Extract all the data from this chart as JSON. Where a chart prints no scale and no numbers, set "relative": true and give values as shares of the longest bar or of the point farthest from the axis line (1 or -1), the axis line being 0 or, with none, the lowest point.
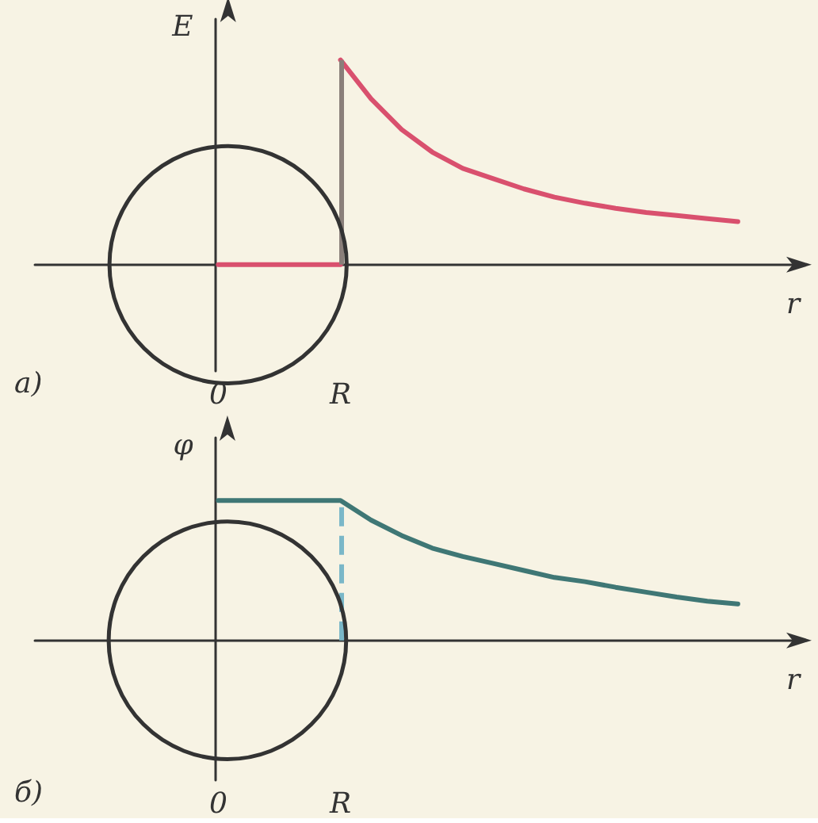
{
  "chart_data": [
    {
      "type": "line",
      "title": "а)",
      "xlabel": "r",
      "ylabel": "E",
      "relative": true,
      "grid": false,
      "marker": "none",
      "categories": [
        null,
        null,
        null,
        null,
        null,
        null,
        "0",
        null,
        null,
        null,
        "R",
        null,
        null,
        null,
        null,
        null,
        null,
        null,
        null,
        null,
        null,
        null,
        null,
        null,
        null,
        null
      ],
      "series": [
        {
          "color": "#d9506e",
          "values": [
            null,
            null,
            null,
            null,
            null,
            null,
            0,
            0,
            0,
            0,
            0,
            null,
            null,
            null,
            null,
            null,
            null,
            null,
            null,
            null,
            null,
            null,
            null,
            null,
            null,
            null
          ]
        },
        {
          "color": "#d9506e",
          "values": [
            null,
            null,
            null,
            null,
            null,
            null,
            null,
            null,
            null,
            null,
            1,
            0.81,
            0.66,
            0.55,
            0.47,
            0.42,
            0.37,
            0.33,
            0.3,
            0.275,
            0.255,
            0.24,
            0.225,
            0.21,
            null,
            null
          ]
        }
      ],
      "ref_lines": [
        {
          "axis": "x",
          "value": "R",
          "color": "#8a7f7a",
          "line_style": "solid"
        }
      ]
    },
    {
      "type": "line",
      "title": "б)",
      "xlabel": "r",
      "ylabel": "φ",
      "relative": true,
      "grid": false,
      "marker": "none",
      "categories": [
        null,
        null,
        null,
        null,
        null,
        null,
        "0",
        null,
        null,
        null,
        "R",
        null,
        null,
        null,
        null,
        null,
        null,
        null,
        null,
        null,
        null,
        null,
        null,
        null,
        null,
        null
      ],
      "series": [
        {
          "color": "#3f7775",
          "values": [
            null,
            null,
            null,
            null,
            null,
            null,
            1,
            1,
            1,
            1,
            1,
            0.86,
            0.75,
            0.66,
            0.6,
            0.55,
            0.5,
            0.45,
            0.42,
            0.38,
            0.345,
            0.31,
            0.28,
            0.26,
            null,
            null
          ]
        }
      ],
      "ref_lines": [
        {
          "axis": "x",
          "value": "R",
          "color": "#7ab7c8",
          "line_style": "dashed"
        }
      ]
    }
  ]
}
